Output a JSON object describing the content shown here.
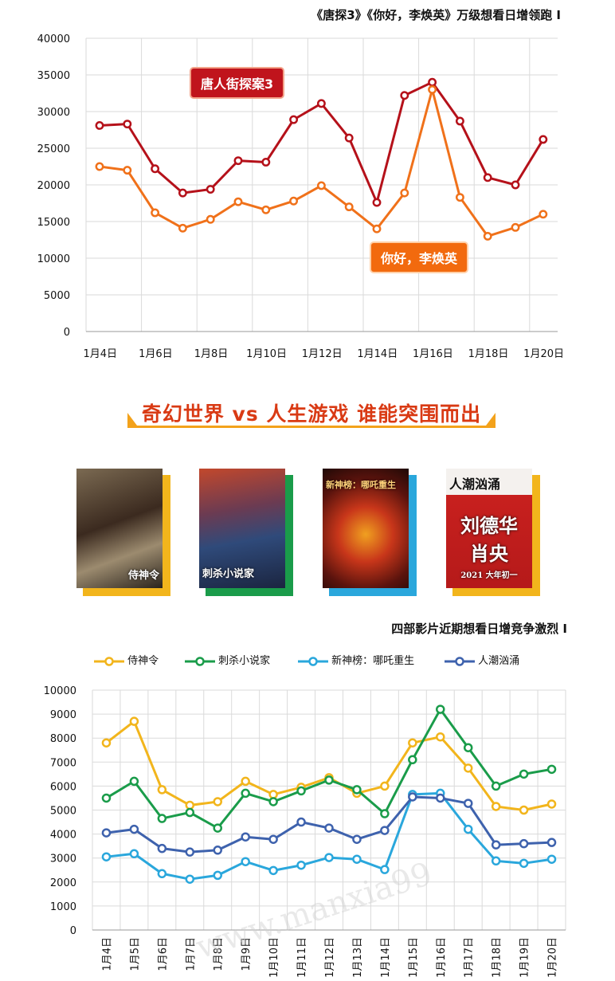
{
  "chart_data": [
    {
      "type": "line",
      "title": "《唐探3》《你好，李焕英》万级想看日增领跑 I",
      "categories": [
        "1月4日",
        "1月5日",
        "1月6日",
        "1月7日",
        "1月8日",
        "1月9日",
        "1月10日",
        "1月11日",
        "1月12日",
        "1月13日",
        "1月14日",
        "1月15日",
        "1月16日",
        "1月17日",
        "1月18日",
        "1月19日",
        "1月20日"
      ],
      "tick_labels": [
        "1月4日",
        "1月6日",
        "1月8日",
        "1月10日",
        "1月12日",
        "1月14日",
        "1月16日",
        "1月18日",
        "1月20日"
      ],
      "y_ticks": [
        0,
        5000,
        10000,
        15000,
        20000,
        25000,
        30000,
        35000,
        40000
      ],
      "ylim": [
        0,
        40000
      ],
      "grid": true,
      "series": [
        {
          "name": "唐人街探案3",
          "color": "#b5111a",
          "values": [
            28100,
            28300,
            22200,
            18900,
            19400,
            23300,
            23100,
            28900,
            31100,
            26400,
            17600,
            32200,
            34000,
            28700,
            21000,
            20000,
            26200
          ]
        },
        {
          "name": "你好，李焕英",
          "color": "#f0711a",
          "values": [
            22500,
            22000,
            16200,
            14100,
            15300,
            17700,
            16600,
            17800,
            19900,
            17000,
            14000,
            18900,
            33000,
            18300,
            13000,
            14200,
            16000
          ]
        }
      ]
    },
    {
      "type": "line",
      "title": "四部影片近期想看日增竞争激烈 I",
      "categories": [
        "1月4日",
        "1月5日",
        "1月6日",
        "1月7日",
        "1月8日",
        "1月9日",
        "1月10日",
        "1月11日",
        "1月12日",
        "1月13日",
        "1月14日",
        "1月15日",
        "1月16日",
        "1月17日",
        "1月18日",
        "1月19日",
        "1月20日"
      ],
      "y_ticks": [
        0,
        1000,
        2000,
        3000,
        4000,
        5000,
        6000,
        7000,
        8000,
        9000,
        10000
      ],
      "ylim": [
        0,
        10000
      ],
      "grid": true,
      "legend_position": "top",
      "series": [
        {
          "name": "侍神令",
          "color": "#f2b51c",
          "values": [
            7800,
            8700,
            5850,
            5200,
            5350,
            6200,
            5650,
            5950,
            6350,
            5700,
            6000,
            7800,
            8050,
            6750,
            5150,
            5000,
            5250
          ]
        },
        {
          "name": "刺杀小说家",
          "color": "#1a9c4a",
          "values": [
            5500,
            6200,
            4650,
            4900,
            4250,
            5700,
            5350,
            5800,
            6250,
            5850,
            4850,
            7100,
            9200,
            7600,
            6000,
            6500,
            6700
          ]
        },
        {
          "name": "新神榜：哪吒重生",
          "color": "#2aa7dc",
          "values": [
            3050,
            3180,
            2350,
            2120,
            2280,
            2850,
            2480,
            2700,
            3020,
            2950,
            2520,
            5650,
            5700,
            4200,
            2880,
            2780,
            2950
          ]
        },
        {
          "name": "人潮汹涌",
          "color": "#3e62ad",
          "values": [
            4050,
            4200,
            3400,
            3250,
            3330,
            3880,
            3780,
            4500,
            4250,
            3780,
            4150,
            5550,
            5500,
            5280,
            3550,
            3600,
            3650
          ]
        }
      ]
    }
  ],
  "section_heading": "奇幻世界 vs 人生游戏 谁能突围而出",
  "posters": [
    {
      "title": "侍神令",
      "accent": "#f2b51c"
    },
    {
      "title": "刺杀小说家",
      "accent": "#1a9c4a"
    },
    {
      "title": "新神榜：哪吒重生",
      "accent": "#2aa7dc"
    },
    {
      "title": "人潮汹涌",
      "subtitle": "刘德华 肖央",
      "date_text": "2021 大年初一",
      "accent": "#f2b51c"
    }
  ],
  "watermark": "www.manxia99"
}
